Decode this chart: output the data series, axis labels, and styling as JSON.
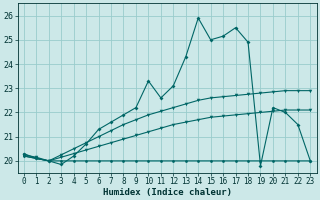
{
  "title": "",
  "xlabel": "Humidex (Indice chaleur)",
  "xlim": [
    -0.5,
    23.5
  ],
  "ylim": [
    19.5,
    26.5
  ],
  "xticks": [
    0,
    1,
    2,
    3,
    4,
    5,
    6,
    7,
    8,
    9,
    10,
    11,
    12,
    13,
    14,
    15,
    16,
    17,
    18,
    19,
    20,
    21,
    22,
    23
  ],
  "yticks": [
    20,
    21,
    22,
    23,
    24,
    25,
    26
  ],
  "bg_color": "#cce8e8",
  "grid_color": "#99cccc",
  "line_color": "#006666",
  "font_color": "#003333",
  "y_flat": [
    20.2,
    20.1,
    20.0,
    20.0,
    20.0,
    20.0,
    20.0,
    20.0,
    20.0,
    20.0,
    20.0,
    20.0,
    20.0,
    20.0,
    20.0,
    20.0,
    20.0,
    20.0,
    20.0,
    20.0,
    20.0,
    20.0,
    20.0,
    20.0
  ],
  "y_rise1": [
    20.2,
    20.1,
    20.0,
    20.15,
    20.3,
    20.45,
    20.6,
    20.75,
    20.9,
    21.05,
    21.2,
    21.35,
    21.5,
    21.6,
    21.7,
    21.8,
    21.85,
    21.9,
    21.95,
    22.0,
    22.05,
    22.1,
    22.1,
    22.1
  ],
  "y_rise2": [
    20.25,
    20.15,
    20.0,
    20.25,
    20.5,
    20.75,
    21.0,
    21.25,
    21.5,
    21.7,
    21.9,
    22.05,
    22.2,
    22.35,
    22.5,
    22.6,
    22.65,
    22.7,
    22.75,
    22.8,
    22.85,
    22.9,
    22.9,
    22.9
  ],
  "y_main": [
    20.3,
    20.1,
    20.0,
    19.85,
    20.2,
    20.7,
    21.3,
    21.6,
    21.9,
    22.2,
    23.3,
    22.6,
    23.1,
    24.3,
    25.9,
    25.0,
    25.15,
    25.5,
    24.9,
    19.8,
    22.2,
    22.0,
    21.5,
    20.0
  ]
}
